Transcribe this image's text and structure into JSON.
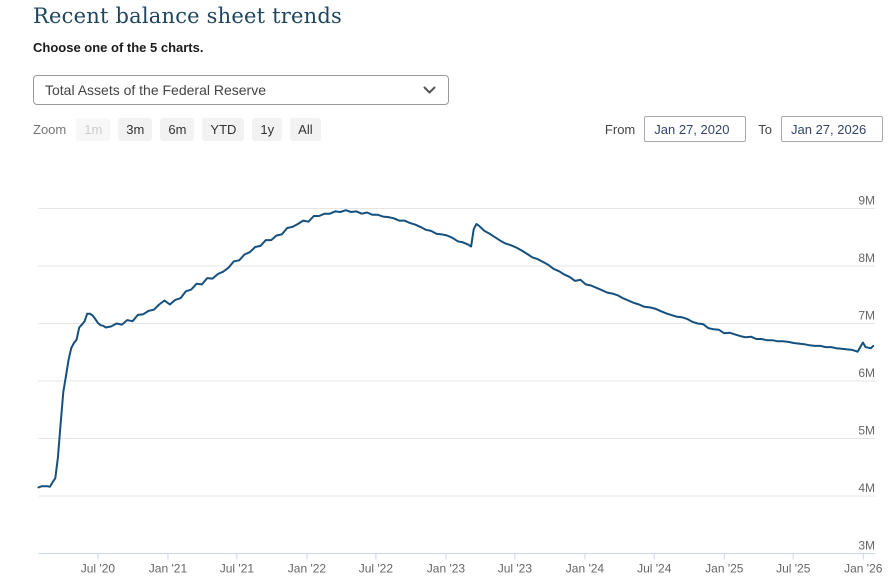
{
  "page": {
    "title": "Recent balance sheet trends",
    "subtitle": "Choose one of the 5 charts."
  },
  "controls": {
    "chart_select": {
      "selected": "Total Assets of the Federal Reserve"
    },
    "zoom": {
      "label": "Zoom",
      "buttons": [
        {
          "label": "1m",
          "enabled": false
        },
        {
          "label": "3m",
          "enabled": true
        },
        {
          "label": "6m",
          "enabled": true
        },
        {
          "label": "YTD",
          "enabled": true
        },
        {
          "label": "1y",
          "enabled": true
        },
        {
          "label": "All",
          "enabled": true
        }
      ]
    },
    "date_range": {
      "from_label": "From",
      "from_value": "Jan 27, 2020",
      "to_label": "To",
      "to_value": "Jan 27, 2026"
    }
  },
  "colors": {
    "title": "#1f455e",
    "line": "#15507f",
    "grid": "#e6e6e6",
    "axis": "#ccd6eb",
    "tick_label": "#666666"
  },
  "chart_data": {
    "type": "line",
    "title": "",
    "legend": "none",
    "grid": true,
    "x_range": [
      "2020-01-27",
      "2026-01-27"
    ],
    "y_axis": {
      "min": 3,
      "max": 9,
      "unit": "M",
      "ticks": [
        {
          "label": "9M",
          "value": 9
        },
        {
          "label": "8M",
          "value": 8
        },
        {
          "label": "7M",
          "value": 7
        },
        {
          "label": "6M",
          "value": 6
        },
        {
          "label": "5M",
          "value": 5
        },
        {
          "label": "4M",
          "value": 4
        },
        {
          "label": "3M",
          "value": 3
        }
      ]
    },
    "x_axis": {
      "ticks": [
        {
          "label": "Jul '20",
          "date": "2020-07-01"
        },
        {
          "label": "Jan '21",
          "date": "2021-01-01"
        },
        {
          "label": "Jul '21",
          "date": "2021-07-01"
        },
        {
          "label": "Jan '22",
          "date": "2022-01-01"
        },
        {
          "label": "Jul '22",
          "date": "2022-07-01"
        },
        {
          "label": "Jan '23",
          "date": "2023-01-01"
        },
        {
          "label": "Jul '23",
          "date": "2023-07-01"
        },
        {
          "label": "Jan '24",
          "date": "2024-01-01"
        },
        {
          "label": "Jul '24",
          "date": "2024-07-01"
        },
        {
          "label": "Jan '25",
          "date": "2025-01-01"
        },
        {
          "label": "Jul '25",
          "date": "2025-07-01"
        },
        {
          "label": "Jan '26",
          "date": "2026-01-01"
        }
      ]
    },
    "series": [
      {
        "name": "Total Assets of the Federal Reserve",
        "unit": "millions of dollars",
        "points": [
          [
            "2020-01-27",
            4.15
          ],
          [
            "2020-02-05",
            4.17
          ],
          [
            "2020-02-19",
            4.17
          ],
          [
            "2020-02-26",
            4.16
          ],
          [
            "2020-03-04",
            4.24
          ],
          [
            "2020-03-11",
            4.31
          ],
          [
            "2020-03-18",
            4.67
          ],
          [
            "2020-03-25",
            5.25
          ],
          [
            "2020-04-01",
            5.81
          ],
          [
            "2020-04-08",
            6.08
          ],
          [
            "2020-04-15",
            6.37
          ],
          [
            "2020-04-22",
            6.57
          ],
          [
            "2020-04-29",
            6.66
          ],
          [
            "2020-05-06",
            6.72
          ],
          [
            "2020-05-13",
            6.93
          ],
          [
            "2020-05-20",
            6.98
          ],
          [
            "2020-05-27",
            7.04
          ],
          [
            "2020-06-03",
            7.17
          ],
          [
            "2020-06-10",
            7.17
          ],
          [
            "2020-06-17",
            7.14
          ],
          [
            "2020-06-24",
            7.08
          ],
          [
            "2020-07-01",
            7.01
          ],
          [
            "2020-07-08",
            6.97
          ],
          [
            "2020-07-15",
            6.96
          ],
          [
            "2020-07-22",
            6.93
          ],
          [
            "2020-08-05",
            6.95
          ],
          [
            "2020-08-19",
            7.0
          ],
          [
            "2020-09-02",
            6.98
          ],
          [
            "2020-09-16",
            7.06
          ],
          [
            "2020-09-30",
            7.04
          ],
          [
            "2020-10-14",
            7.15
          ],
          [
            "2020-10-28",
            7.16
          ],
          [
            "2020-11-11",
            7.22
          ],
          [
            "2020-11-25",
            7.24
          ],
          [
            "2020-12-09",
            7.33
          ],
          [
            "2020-12-23",
            7.4
          ],
          [
            "2021-01-06",
            7.33
          ],
          [
            "2021-01-20",
            7.41
          ],
          [
            "2021-02-03",
            7.44
          ],
          [
            "2021-02-17",
            7.56
          ],
          [
            "2021-03-03",
            7.59
          ],
          [
            "2021-03-17",
            7.69
          ],
          [
            "2021-03-31",
            7.68
          ],
          [
            "2021-04-14",
            7.79
          ],
          [
            "2021-04-28",
            7.78
          ],
          [
            "2021-05-12",
            7.86
          ],
          [
            "2021-05-26",
            7.9
          ],
          [
            "2021-06-09",
            7.97
          ],
          [
            "2021-06-23",
            8.08
          ],
          [
            "2021-07-07",
            8.1
          ],
          [
            "2021-07-21",
            8.2
          ],
          [
            "2021-08-04",
            8.24
          ],
          [
            "2021-08-18",
            8.33
          ],
          [
            "2021-09-01",
            8.35
          ],
          [
            "2021-09-15",
            8.45
          ],
          [
            "2021-09-29",
            8.45
          ],
          [
            "2021-10-13",
            8.53
          ],
          [
            "2021-10-27",
            8.55
          ],
          [
            "2021-11-10",
            8.66
          ],
          [
            "2021-11-24",
            8.68
          ],
          [
            "2021-12-08",
            8.73
          ],
          [
            "2021-12-22",
            8.79
          ],
          [
            "2022-01-05",
            8.77
          ],
          [
            "2022-01-19",
            8.87
          ],
          [
            "2022-02-02",
            8.87
          ],
          [
            "2022-02-16",
            8.91
          ],
          [
            "2022-03-02",
            8.91
          ],
          [
            "2022-03-16",
            8.95
          ],
          [
            "2022-03-30",
            8.94
          ],
          [
            "2022-04-13",
            8.97
          ],
          [
            "2022-04-27",
            8.94
          ],
          [
            "2022-05-11",
            8.95
          ],
          [
            "2022-05-25",
            8.91
          ],
          [
            "2022-06-08",
            8.93
          ],
          [
            "2022-06-22",
            8.89
          ],
          [
            "2022-07-06",
            8.89
          ],
          [
            "2022-07-20",
            8.86
          ],
          [
            "2022-08-03",
            8.85
          ],
          [
            "2022-08-17",
            8.83
          ],
          [
            "2022-08-31",
            8.79
          ],
          [
            "2022-09-14",
            8.79
          ],
          [
            "2022-09-28",
            8.75
          ],
          [
            "2022-10-12",
            8.72
          ],
          [
            "2022-10-26",
            8.68
          ],
          [
            "2022-11-09",
            8.63
          ],
          [
            "2022-11-23",
            8.61
          ],
          [
            "2022-12-07",
            8.56
          ],
          [
            "2022-12-21",
            8.55
          ],
          [
            "2023-01-04",
            8.53
          ],
          [
            "2023-01-18",
            8.49
          ],
          [
            "2023-02-01",
            8.43
          ],
          [
            "2023-02-15",
            8.41
          ],
          [
            "2023-03-01",
            8.37
          ],
          [
            "2023-03-08",
            8.34
          ],
          [
            "2023-03-15",
            8.64
          ],
          [
            "2023-03-22",
            8.73
          ],
          [
            "2023-03-29",
            8.7
          ],
          [
            "2023-04-12",
            8.61
          ],
          [
            "2023-04-26",
            8.56
          ],
          [
            "2023-05-10",
            8.5
          ],
          [
            "2023-05-24",
            8.44
          ],
          [
            "2023-06-07",
            8.39
          ],
          [
            "2023-06-21",
            8.36
          ],
          [
            "2023-07-05",
            8.32
          ],
          [
            "2023-07-19",
            8.27
          ],
          [
            "2023-08-02",
            8.21
          ],
          [
            "2023-08-16",
            8.15
          ],
          [
            "2023-08-30",
            8.12
          ],
          [
            "2023-09-13",
            8.07
          ],
          [
            "2023-09-27",
            8.02
          ],
          [
            "2023-10-11",
            7.95
          ],
          [
            "2023-10-25",
            7.91
          ],
          [
            "2023-11-08",
            7.85
          ],
          [
            "2023-11-22",
            7.81
          ],
          [
            "2023-12-06",
            7.74
          ],
          [
            "2023-12-20",
            7.76
          ],
          [
            "2024-01-03",
            7.68
          ],
          [
            "2024-01-17",
            7.66
          ],
          [
            "2024-01-31",
            7.62
          ],
          [
            "2024-02-14",
            7.58
          ],
          [
            "2024-02-28",
            7.54
          ],
          [
            "2024-03-13",
            7.52
          ],
          [
            "2024-03-27",
            7.49
          ],
          [
            "2024-04-10",
            7.44
          ],
          [
            "2024-04-24",
            7.4
          ],
          [
            "2024-05-08",
            7.36
          ],
          [
            "2024-05-22",
            7.33
          ],
          [
            "2024-06-05",
            7.29
          ],
          [
            "2024-06-19",
            7.28
          ],
          [
            "2024-07-03",
            7.26
          ],
          [
            "2024-07-17",
            7.22
          ],
          [
            "2024-07-31",
            7.18
          ],
          [
            "2024-08-14",
            7.15
          ],
          [
            "2024-08-28",
            7.12
          ],
          [
            "2024-09-11",
            7.11
          ],
          [
            "2024-09-25",
            7.08
          ],
          [
            "2024-10-09",
            7.03
          ],
          [
            "2024-10-23",
            7.0
          ],
          [
            "2024-11-06",
            6.99
          ],
          [
            "2024-11-20",
            6.92
          ],
          [
            "2024-12-04",
            6.9
          ],
          [
            "2024-12-18",
            6.89
          ],
          [
            "2025-01-01",
            6.83
          ],
          [
            "2025-01-15",
            6.84
          ],
          [
            "2025-01-29",
            6.81
          ],
          [
            "2025-02-12",
            6.78
          ],
          [
            "2025-02-26",
            6.76
          ],
          [
            "2025-03-12",
            6.77
          ],
          [
            "2025-03-26",
            6.73
          ],
          [
            "2025-04-09",
            6.73
          ],
          [
            "2025-04-23",
            6.71
          ],
          [
            "2025-05-07",
            6.71
          ],
          [
            "2025-05-21",
            6.69
          ],
          [
            "2025-06-04",
            6.69
          ],
          [
            "2025-06-18",
            6.68
          ],
          [
            "2025-07-02",
            6.66
          ],
          [
            "2025-07-16",
            6.65
          ],
          [
            "2025-07-30",
            6.64
          ],
          [
            "2025-08-13",
            6.62
          ],
          [
            "2025-08-27",
            6.61
          ],
          [
            "2025-09-10",
            6.61
          ],
          [
            "2025-09-24",
            6.59
          ],
          [
            "2025-10-08",
            6.59
          ],
          [
            "2025-10-22",
            6.57
          ],
          [
            "2025-11-05",
            6.56
          ],
          [
            "2025-11-19",
            6.55
          ],
          [
            "2025-12-03",
            6.54
          ],
          [
            "2025-12-17",
            6.51
          ],
          [
            "2025-12-31",
            6.67
          ],
          [
            "2026-01-07",
            6.59
          ],
          [
            "2026-01-14",
            6.58
          ],
          [
            "2026-01-21",
            6.57
          ],
          [
            "2026-01-27",
            6.61
          ]
        ]
      }
    ]
  }
}
